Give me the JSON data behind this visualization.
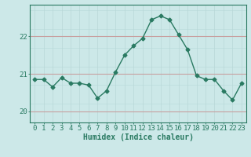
{
  "x": [
    0,
    1,
    2,
    3,
    4,
    5,
    6,
    7,
    8,
    9,
    10,
    11,
    12,
    13,
    14,
    15,
    16,
    17,
    18,
    19,
    20,
    21,
    22,
    23
  ],
  "y": [
    20.85,
    20.85,
    20.65,
    20.9,
    20.75,
    20.75,
    20.7,
    20.35,
    20.55,
    21.05,
    21.5,
    21.75,
    21.95,
    22.45,
    22.55,
    22.45,
    22.05,
    21.65,
    20.95,
    20.85,
    20.85,
    20.55,
    20.3,
    20.75
  ],
  "line_color": "#2a7a62",
  "marker": "D",
  "marker_size": 2.5,
  "bg_color": "#cce8e8",
  "grid_color_v": "#b8d8d8",
  "grid_color_h": "#c8a0a0",
  "axis_color": "#2a7a62",
  "xlabel": "Humidex (Indice chaleur)",
  "xlabel_fontsize": 7,
  "yticks": [
    20,
    21,
    22
  ],
  "ylim": [
    19.7,
    22.85
  ],
  "xlim": [
    -0.5,
    23.5
  ],
  "tick_fontsize": 6.5,
  "line_width": 1.0
}
